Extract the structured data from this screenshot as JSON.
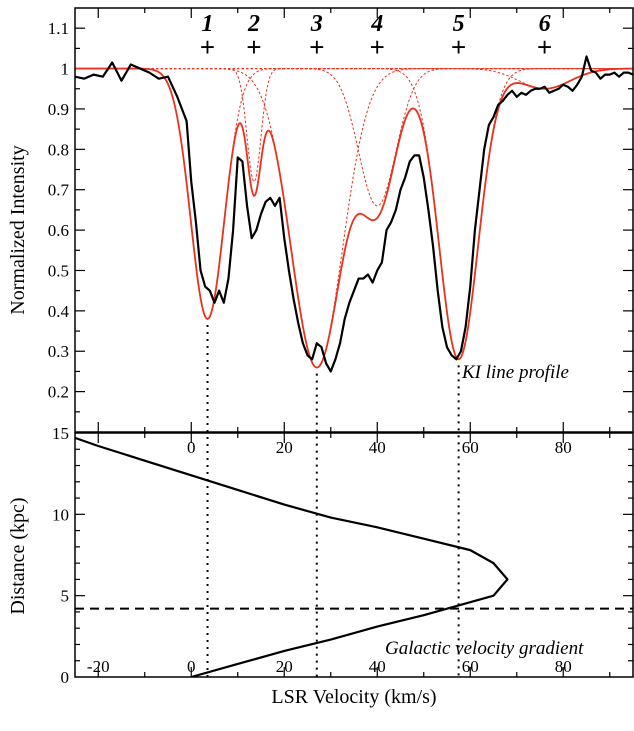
{
  "chart_data": [
    {
      "type": "line",
      "title": "",
      "xlabel": "",
      "ylabel": "Normalized Intensity",
      "xlim": [
        -25,
        95
      ],
      "ylim": [
        0.1,
        1.15
      ],
      "x_ticks": [
        "0",
        "20",
        "40",
        "60",
        "80"
      ],
      "y_ticks": [
        "0.2",
        "0.3",
        "0.4",
        "0.5",
        "0.6",
        "0.7",
        "0.8",
        "0.9",
        "1",
        "1.1"
      ],
      "annotation": "KI line profile",
      "components": [
        {
          "label": "1",
          "center": 3.5,
          "depth": 0.62,
          "width": 3.6
        },
        {
          "label": "2",
          "center": 13.5,
          "depth": 0.28,
          "width": 1.5
        },
        {
          "label": "3",
          "center": 27,
          "depth": 0.74,
          "width": 5.5
        },
        {
          "label": "4",
          "center": 40,
          "depth": 0.34,
          "width": 4.0
        },
        {
          "label": "5",
          "center": 57.5,
          "depth": 0.72,
          "width": 4.2
        },
        {
          "label": "6",
          "center": 76,
          "depth": 0.05,
          "width": 5.5
        }
      ],
      "series": [
        {
          "name": "observed",
          "color": "#000000",
          "x": [
            -25,
            -23,
            -21,
            -19,
            -17,
            -15,
            -13,
            -11,
            -9,
            -7,
            -5,
            -3,
            -1,
            0,
            1,
            2,
            3,
            4,
            5,
            6,
            7,
            8,
            9,
            10,
            11,
            12,
            13,
            14,
            15,
            16,
            17,
            18,
            19,
            20,
            21,
            22,
            23,
            24,
            25,
            26,
            27,
            28,
            29,
            30,
            31,
            32,
            33,
            34,
            35,
            36,
            37,
            38,
            39,
            40,
            41,
            42,
            43,
            44,
            45,
            46,
            47,
            48,
            49,
            50,
            51,
            52,
            53,
            54,
            55,
            56,
            57,
            58,
            59,
            60,
            61,
            62,
            63,
            64,
            65,
            66,
            67,
            68,
            69,
            70,
            71,
            72,
            73,
            74,
            75,
            76,
            77,
            78,
            79,
            80,
            81,
            82,
            83,
            84,
            85,
            86,
            87,
            88,
            89,
            90,
            91,
            92,
            93,
            94,
            95
          ],
          "values": [
            0.98,
            0.975,
            0.985,
            0.98,
            1.015,
            0.97,
            1.01,
            1.0,
            0.99,
            0.975,
            0.98,
            0.93,
            0.87,
            0.72,
            0.62,
            0.5,
            0.46,
            0.45,
            0.42,
            0.45,
            0.42,
            0.48,
            0.6,
            0.78,
            0.77,
            0.66,
            0.58,
            0.6,
            0.64,
            0.67,
            0.68,
            0.66,
            0.68,
            0.58,
            0.5,
            0.43,
            0.37,
            0.32,
            0.29,
            0.28,
            0.32,
            0.31,
            0.27,
            0.25,
            0.28,
            0.32,
            0.38,
            0.42,
            0.45,
            0.48,
            0.48,
            0.49,
            0.47,
            0.5,
            0.52,
            0.6,
            0.62,
            0.65,
            0.7,
            0.73,
            0.77,
            0.785,
            0.785,
            0.73,
            0.65,
            0.56,
            0.45,
            0.36,
            0.31,
            0.29,
            0.28,
            0.3,
            0.36,
            0.46,
            0.6,
            0.7,
            0.8,
            0.86,
            0.88,
            0.91,
            0.92,
            0.935,
            0.945,
            0.93,
            0.94,
            0.935,
            0.945,
            0.95,
            0.95,
            0.955,
            0.94,
            0.945,
            0.95,
            0.96,
            0.955,
            0.945,
            0.96,
            0.98,
            1.03,
            0.995,
            0.99,
            0.975,
            0.985,
            0.985,
            0.99,
            0.98,
            0.99,
            0.99,
            0.985
          ]
        }
      ]
    },
    {
      "type": "line",
      "title": "",
      "xlabel": "LSR Velocity (km/s)",
      "ylabel": "Distance (kpc)",
      "xlim": [
        -25,
        95
      ],
      "ylim": [
        0,
        15
      ],
      "x_ticks": [
        "-20",
        "0",
        "20",
        "40",
        "60",
        "80"
      ],
      "y_ticks": [
        "0",
        "5",
        "10",
        "15"
      ],
      "annotation": "Galactic velocity gradient",
      "horizontal_line": {
        "y": 4.2,
        "style": "dashed"
      },
      "series": [
        {
          "name": "rotation curve",
          "color": "#000000",
          "x": [
            0,
            10,
            20,
            30,
            40,
            50,
            60,
            65,
            68,
            65,
            60,
            50,
            40,
            30,
            20,
            10,
            0,
            -10,
            -20,
            -25
          ],
          "y": [
            0,
            0.8,
            1.6,
            2.3,
            3.1,
            3.8,
            4.6,
            5.0,
            6.0,
            7.0,
            7.8,
            8.5,
            9.2,
            9.8,
            10.6,
            11.5,
            12.4,
            13.3,
            14.2,
            14.7
          ]
        }
      ]
    }
  ]
}
